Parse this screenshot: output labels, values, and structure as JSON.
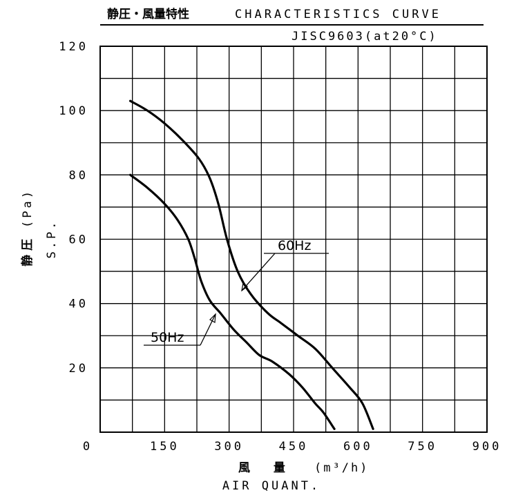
{
  "header": {
    "title_jp": "静圧・風量特性",
    "title_en": "CHARACTERISTICS CURVE",
    "standard": "JISC9603(at20°C)"
  },
  "chart_data": {
    "type": "line",
    "title": "CHARACTERISTICS CURVE",
    "xlabel_jp": "風 量",
    "xlabel_unit": "(m³/h)",
    "xlabel_en": "AIR QUANT.",
    "ylabel_jp": "静 圧",
    "ylabel_unit": "(Pa)",
    "ylabel_en": "S.P.",
    "xlim": [
      0,
      900
    ],
    "ylim": [
      0,
      120
    ],
    "x_ticks": [
      0,
      150,
      300,
      450,
      600,
      750,
      900
    ],
    "y_ticks": [
      20,
      40,
      60,
      80,
      100,
      120
    ],
    "x_grid_step": 75,
    "y_grid_step": 10,
    "grid": true,
    "series": [
      {
        "name": "60Hz",
        "x": [
          70,
          110,
          150,
          190,
          230,
          255,
          275,
          295,
          320,
          350,
          390,
          420,
          460,
          500,
          540,
          580,
          610,
          635
        ],
        "y": [
          103,
          100,
          96,
          91,
          85,
          79,
          71,
          60,
          50,
          43,
          37,
          34,
          30,
          26,
          20,
          14,
          9,
          1
        ]
      },
      {
        "name": "50Hz",
        "x": [
          70,
          110,
          150,
          180,
          205,
          220,
          235,
          255,
          280,
          310,
          340,
          370,
          400,
          440,
          470,
          500,
          520,
          545
        ],
        "y": [
          80,
          76,
          71,
          66,
          60,
          54,
          47,
          41,
          37,
          32,
          28,
          24,
          22,
          18,
          14,
          9,
          6,
          1
        ]
      }
    ]
  }
}
